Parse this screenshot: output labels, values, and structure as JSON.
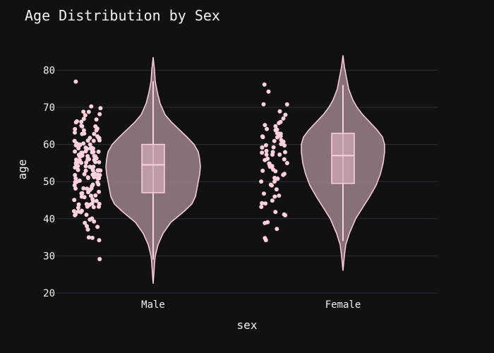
{
  "chart_data": {
    "type": "violin",
    "title": "Age Distribution by Sex",
    "xlabel": "sex",
    "ylabel": "age",
    "categories": [
      "Male",
      "Female"
    ],
    "ylim": [
      20,
      85
    ],
    "yticks": [
      20,
      30,
      40,
      50,
      60,
      70,
      80
    ],
    "grid": true,
    "colors": {
      "background": "#111111",
      "grid": "#2a2f3a",
      "text": "#f2f2f2",
      "violin_fill": "#9a8288",
      "violin_line": "#ffd1dc",
      "box_fill": "#cfa9b4",
      "point": "#ffd1dc"
    },
    "series": [
      {
        "category": "Male",
        "violin_min": 22.5,
        "violin_max": 83.5,
        "box": {
          "lower_fence": 29,
          "q1": 47,
          "median": 54.5,
          "q3": 60,
          "upper_fence": 77
        },
        "points": [
          77,
          70,
          70,
          69,
          69,
          68,
          68,
          67,
          67,
          66,
          66,
          66,
          65,
          65,
          65,
          64,
          64,
          64,
          64,
          63,
          63,
          63,
          63,
          62,
          62,
          62,
          62,
          61,
          61,
          61,
          61,
          61,
          60,
          60,
          60,
          60,
          60,
          60,
          59,
          59,
          59,
          59,
          59,
          59,
          59,
          58,
          58,
          58,
          58,
          58,
          58,
          58,
          58,
          57,
          57,
          57,
          57,
          57,
          57,
          57,
          56,
          56,
          56,
          56,
          56,
          56,
          56,
          55,
          55,
          55,
          55,
          55,
          55,
          55,
          54,
          54,
          54,
          54,
          54,
          54,
          54,
          53,
          53,
          53,
          53,
          53,
          53,
          52,
          52,
          52,
          52,
          52,
          52,
          52,
          51,
          51,
          51,
          51,
          51,
          51,
          50,
          50,
          50,
          50,
          50,
          49,
          49,
          49,
          49,
          48,
          48,
          48,
          48,
          48,
          47,
          47,
          47,
          47,
          46,
          46,
          46,
          46,
          45,
          45,
          45,
          45,
          44,
          44,
          44,
          44,
          44,
          43,
          43,
          43,
          43,
          42,
          42,
          42,
          42,
          41,
          41,
          41,
          40,
          40,
          39,
          39,
          38,
          38,
          37,
          35,
          35,
          34,
          29
        ]
      },
      {
        "category": "Female",
        "violin_min": 26,
        "violin_max": 84,
        "box": {
          "lower_fence": 34,
          "q1": 49.5,
          "median": 57,
          "q3": 63,
          "upper_fence": 76
        },
        "points": [
          76,
          74,
          71,
          71,
          69,
          68,
          67,
          66,
          66,
          65,
          65,
          64,
          64,
          64,
          63,
          63,
          63,
          62,
          62,
          62,
          62,
          61,
          61,
          61,
          60,
          60,
          60,
          59,
          59,
          59,
          58,
          58,
          58,
          58,
          57,
          57,
          57,
          56,
          56,
          56,
          55,
          55,
          55,
          54,
          54,
          54,
          54,
          53,
          53,
          53,
          52,
          52,
          51,
          51,
          51,
          50,
          50,
          49,
          49,
          48,
          47,
          46,
          46,
          45,
          44,
          44,
          43,
          42,
          41,
          41,
          39,
          39,
          37,
          35,
          34
        ]
      }
    ]
  }
}
